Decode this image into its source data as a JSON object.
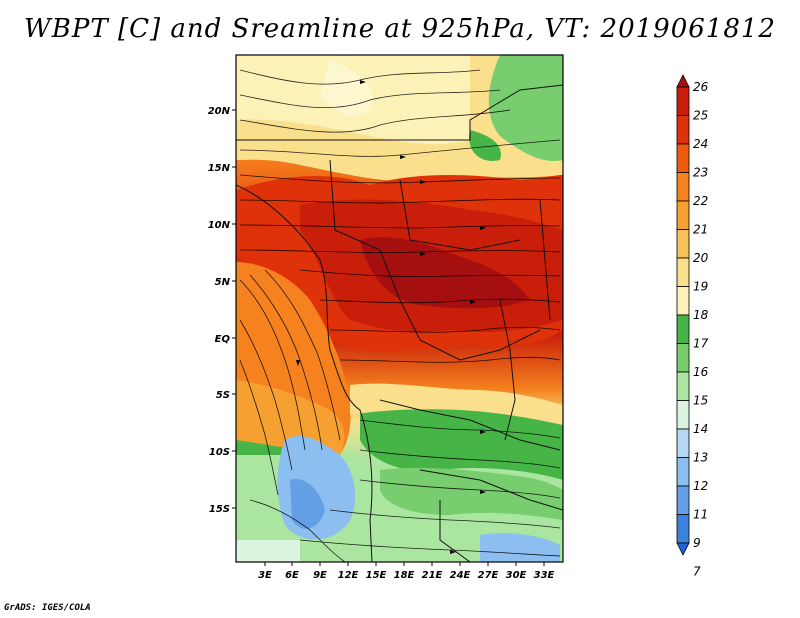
{
  "title": "WBPT [C] and Sreamline at 925hPa, VT: 2019061812",
  "credit": "GrADS: IGES/COLA",
  "lat_labels": [
    "20N",
    "15N",
    "10N",
    "5N",
    "EQ",
    "5S",
    "10S",
    "15S"
  ],
  "lon_labels": [
    "3E",
    "6E",
    "9E",
    "12E",
    "15E",
    "18E",
    "21E",
    "24E",
    "27E",
    "30E",
    "33E"
  ],
  "colorbar": {
    "labels": [
      "26",
      "25",
      "24",
      "23",
      "22",
      "21",
      "20",
      "19",
      "18",
      "17",
      "16",
      "15",
      "14",
      "13",
      "12",
      "11",
      "9",
      "7"
    ],
    "colors": [
      "#a50f0f",
      "#c81e0a",
      "#e0320a",
      "#ee5a10",
      "#f5821e",
      "#f7a032",
      "#f8c25a",
      "#fae08c",
      "#fcf2b8",
      "#46b446",
      "#78cd6e",
      "#aae6a0",
      "#dcf5e0",
      "#b4d7f5",
      "#8cbef0",
      "#64a0e6",
      "#3c82dc",
      "#1e64d2"
    ]
  }
}
